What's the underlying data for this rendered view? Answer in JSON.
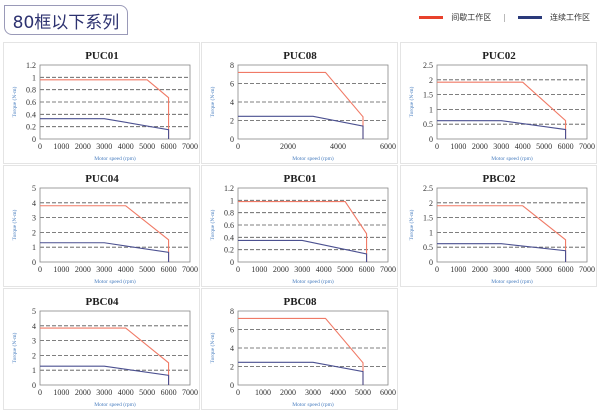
{
  "header": {
    "title": "80框以下系列"
  },
  "legend": {
    "items": [
      {
        "label": "间歇工作区",
        "color": "#e8412c"
      },
      {
        "label": "连续工作区",
        "color": "#2a3a7a"
      }
    ],
    "separator": "|"
  },
  "colors": {
    "intermittent": "#f07a66",
    "continuous": "#4b5090",
    "grid": "#555555",
    "axis_label": "#4a7fc0"
  },
  "chart_data": [
    {
      "type": "line",
      "title": "PUC01",
      "xlabel": "Motor speed (rpm)",
      "ylabel": "Torque (N-m)",
      "xlim": [
        0,
        7000
      ],
      "xticks": [
        0,
        1000,
        2000,
        3000,
        4000,
        5000,
        6000,
        7000
      ],
      "ylim": [
        0,
        1.2
      ],
      "yticks": [
        0,
        0.2,
        0.4,
        0.6,
        0.8,
        1,
        1.2
      ],
      "grid": "dashed horizontal",
      "series": [
        {
          "name": "间歇工作区",
          "x": [
            0,
            5000,
            6000,
            6000
          ],
          "y": [
            0.96,
            0.96,
            0.67,
            0
          ]
        },
        {
          "name": "连续工作区",
          "x": [
            0,
            3000,
            6000,
            6000
          ],
          "y": [
            0.33,
            0.33,
            0.15,
            0
          ]
        }
      ]
    },
    {
      "type": "line",
      "title": "PUC08",
      "xlabel": "Motor speed (rpm)",
      "ylabel": "Torque (N-m)",
      "xlim": [
        0,
        6000
      ],
      "xticks": [
        0,
        2000,
        4000,
        6000
      ],
      "ylim": [
        0,
        8
      ],
      "yticks": [
        0,
        2,
        4,
        6,
        8
      ],
      "grid": "dashed horizontal",
      "series": [
        {
          "name": "间歇工作区",
          "x": [
            0,
            3500,
            5000,
            5000
          ],
          "y": [
            7.2,
            7.2,
            2.4,
            0
          ]
        },
        {
          "name": "连续工作区",
          "x": [
            0,
            3000,
            5000,
            5000
          ],
          "y": [
            2.45,
            2.45,
            1.4,
            0
          ]
        }
      ]
    },
    {
      "type": "line",
      "title": "PUC02",
      "xlabel": "Motor speed (rpm)",
      "ylabel": "Torque (N-m)",
      "xlim": [
        0,
        7000
      ],
      "xticks": [
        0,
        1000,
        2000,
        3000,
        4000,
        5000,
        6000,
        7000
      ],
      "ylim": [
        0,
        2.5
      ],
      "yticks": [
        0,
        0.5,
        1,
        1.5,
        2,
        2.5
      ],
      "grid": "dashed horizontal",
      "series": [
        {
          "name": "间歇工作区",
          "x": [
            0,
            4000,
            6000,
            6000
          ],
          "y": [
            1.92,
            1.92,
            0.62,
            0
          ]
        },
        {
          "name": "连续工作区",
          "x": [
            0,
            3000,
            6000,
            6000
          ],
          "y": [
            0.62,
            0.62,
            0.32,
            0
          ]
        }
      ]
    },
    {
      "type": "line",
      "title": "PUC04",
      "xlabel": "Motor speed (rpm)",
      "ylabel": "Torque (N-m)",
      "xlim": [
        0,
        7000
      ],
      "xticks": [
        0,
        1000,
        2000,
        3000,
        4000,
        5000,
        6000,
        7000
      ],
      "ylim": [
        0,
        5
      ],
      "yticks": [
        0,
        1,
        2,
        3,
        4,
        5
      ],
      "grid": "dashed horizontal",
      "series": [
        {
          "name": "间歇工作区",
          "x": [
            0,
            4000,
            6000,
            6000
          ],
          "y": [
            3.8,
            3.8,
            1.5,
            0
          ]
        },
        {
          "name": "连续工作区",
          "x": [
            0,
            3000,
            6000,
            6000
          ],
          "y": [
            1.3,
            1.3,
            0.65,
            0
          ]
        }
      ]
    },
    {
      "type": "line",
      "title": "PBC01",
      "xlabel": "Motor speed (rpm)",
      "ylabel": "Torque (N-m)",
      "xlim": [
        0,
        7000
      ],
      "xticks": [
        0,
        1000,
        2000,
        3000,
        4000,
        5000,
        6000,
        7000
      ],
      "ylim": [
        0,
        1.2
      ],
      "yticks": [
        0,
        0.2,
        0.4,
        0.6,
        0.8,
        1,
        1.2
      ],
      "grid": "dashed horizontal",
      "series": [
        {
          "name": "间歇工作区",
          "x": [
            0,
            5000,
            6000,
            6000
          ],
          "y": [
            0.98,
            0.98,
            0.46,
            0
          ]
        },
        {
          "name": "连续工作区",
          "x": [
            0,
            3000,
            6000,
            6000
          ],
          "y": [
            0.35,
            0.35,
            0.13,
            0
          ]
        }
      ]
    },
    {
      "type": "line",
      "title": "PBC02",
      "xlabel": "Motor speed (rpm)",
      "ylabel": "Torque (N-m)",
      "xlim": [
        0,
        7000
      ],
      "xticks": [
        0,
        1000,
        2000,
        3000,
        4000,
        5000,
        6000,
        7000
      ],
      "ylim": [
        0,
        2.5
      ],
      "yticks": [
        0,
        0.5,
        1,
        1.5,
        2,
        2.5
      ],
      "grid": "dashed horizontal",
      "series": [
        {
          "name": "间歇工作区",
          "x": [
            0,
            4000,
            6000,
            6000
          ],
          "y": [
            1.9,
            1.9,
            0.75,
            0
          ]
        },
        {
          "name": "连续工作区",
          "x": [
            0,
            3000,
            6000,
            6000
          ],
          "y": [
            0.62,
            0.62,
            0.38,
            0
          ]
        }
      ]
    },
    {
      "type": "line",
      "title": "PBC04",
      "xlabel": "Motor speed (rpm)",
      "ylabel": "Torque (N-m)",
      "xlim": [
        0,
        7000
      ],
      "xticks": [
        0,
        1000,
        2000,
        3000,
        4000,
        5000,
        6000,
        7000
      ],
      "ylim": [
        0,
        5
      ],
      "yticks": [
        0,
        1,
        2,
        3,
        4,
        5
      ],
      "grid": "dashed horizontal",
      "series": [
        {
          "name": "间歇工作区",
          "x": [
            0,
            4000,
            6000,
            6000
          ],
          "y": [
            3.85,
            3.85,
            1.5,
            0
          ]
        },
        {
          "name": "连续工作区",
          "x": [
            0,
            3000,
            6000,
            6000
          ],
          "y": [
            1.27,
            1.27,
            0.65,
            0
          ]
        }
      ]
    },
    {
      "type": "line",
      "title": "PBC08",
      "xlabel": "Motor speed (rpm)",
      "ylabel": "Torque (N-m)",
      "xlim": [
        0,
        6000
      ],
      "xticks": [
        0,
        1000,
        2000,
        3000,
        4000,
        5000,
        6000
      ],
      "ylim": [
        0,
        8
      ],
      "yticks": [
        0,
        2,
        4,
        6,
        8
      ],
      "grid": "dashed horizontal",
      "series": [
        {
          "name": "间歇工作区",
          "x": [
            0,
            3500,
            5000,
            5000
          ],
          "y": [
            7.2,
            7.2,
            2.4,
            0
          ]
        },
        {
          "name": "连续工作区",
          "x": [
            0,
            3000,
            5000,
            5000
          ],
          "y": [
            2.45,
            2.45,
            1.45,
            0
          ]
        }
      ]
    }
  ]
}
